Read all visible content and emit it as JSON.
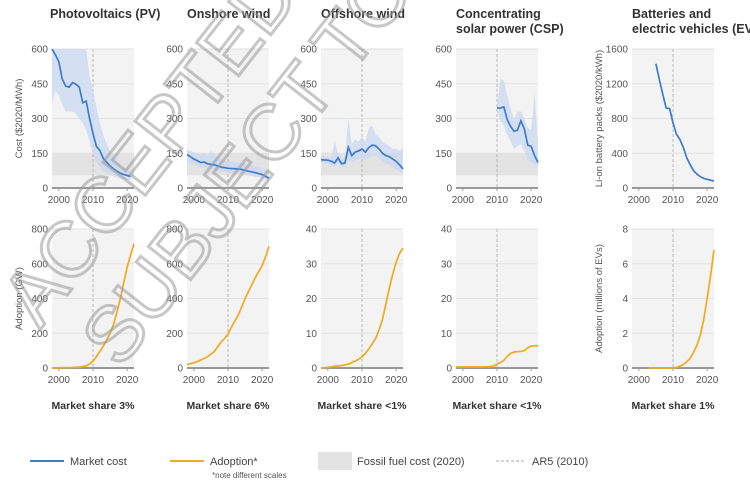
{
  "colors": {
    "cost": "#3d7cc9",
    "cost_band": "#cbd8f1",
    "adoption": "#f2a91f",
    "fossil": "#e3e3e3",
    "plot_bg": "#f3f3f3",
    "ar5": "#aaaaaa"
  },
  "legend": {
    "market_cost": "Market cost",
    "adoption": "Adoption*",
    "adoption_note": "*note different scales",
    "fossil": "Fossil fuel cost (2020)",
    "ar5": "AR5 (2010)"
  },
  "watermark": [
    "ACCEPTED",
    "SUBJECT TO"
  ],
  "chart_data": [
    {
      "type": "line",
      "title": [
        "Photovoltaics (PV)"
      ],
      "ylabel": "Cost ($2020/MWh)",
      "ylim": [
        0,
        600
      ],
      "yticks": [
        "0",
        "150",
        "300",
        "450",
        "600"
      ],
      "xticks": [
        "2000",
        "2010",
        "2020"
      ],
      "xlim": [
        1998,
        2022
      ],
      "fossil_band": [
        55,
        150
      ],
      "ar5_year": 2010,
      "x": [
        1998,
        1999,
        2000,
        2001,
        2002,
        2003,
        2004,
        2005,
        2006,
        2007,
        2008,
        2009,
        2010,
        2011,
        2012,
        2013,
        2014,
        2015,
        2016,
        2017,
        2018,
        2019,
        2020,
        2021
      ],
      "values": [
        610,
        575,
        545,
        470,
        440,
        435,
        455,
        448,
        435,
        368,
        375,
        300,
        235,
        180,
        162,
        128,
        112,
        95,
        83,
        73,
        64,
        58,
        54,
        50
      ],
      "band_upper": [
        600,
        600,
        600,
        600,
        600,
        600,
        600,
        600,
        600,
        600,
        600,
        480,
        420,
        350,
        280,
        230,
        190,
        160,
        140,
        120,
        100,
        90,
        80,
        75
      ],
      "band_lower": [
        360,
        420,
        400,
        360,
        330,
        330,
        330,
        320,
        300,
        280,
        250,
        200,
        150,
        110,
        90,
        70,
        65,
        60,
        50,
        45,
        40,
        38,
        35,
        33
      ]
    },
    {
      "type": "line",
      "title": [
        "Onshore wind"
      ],
      "ylim": [
        0,
        600
      ],
      "yticks": [
        "0",
        "150",
        "300",
        "450",
        "600"
      ],
      "xticks": [
        "2000",
        "2010",
        "2020"
      ],
      "xlim": [
        1998,
        2022
      ],
      "fossil_band": [
        55,
        150
      ],
      "ar5_year": 2010,
      "x": [
        1998,
        2000,
        2001,
        2002,
        2003,
        2004,
        2005,
        2006,
        2007,
        2008,
        2009,
        2010,
        2011,
        2012,
        2013,
        2014,
        2015,
        2016,
        2017,
        2018,
        2019,
        2020,
        2021,
        2022
      ],
      "values": [
        145,
        125,
        118,
        110,
        112,
        105,
        102,
        100,
        95,
        90,
        88,
        85,
        84,
        83,
        82,
        80,
        76,
        72,
        70,
        66,
        62,
        58,
        50,
        42
      ],
      "band_upper": [
        165,
        155,
        150,
        145,
        150,
        140,
        160,
        145,
        130,
        125,
        120,
        115,
        115,
        112,
        110,
        108,
        104,
        100,
        97,
        94,
        90,
        86,
        80,
        72
      ],
      "band_lower": [
        115,
        100,
        95,
        88,
        88,
        82,
        80,
        78,
        74,
        70,
        68,
        65,
        64,
        63,
        62,
        60,
        57,
        54,
        52,
        49,
        46,
        43,
        37,
        30
      ]
    },
    {
      "type": "line",
      "title": [
        "Offshore wind"
      ],
      "ylim": [
        0,
        600
      ],
      "yticks": [
        "0",
        "150",
        "300",
        "450",
        "600"
      ],
      "xticks": [
        "2000",
        "2010",
        "2020"
      ],
      "xlim": [
        1998,
        2022
      ],
      "fossil_band": [
        55,
        150
      ],
      "ar5_year": 2010,
      "x": [
        1998,
        2000,
        2001,
        2002,
        2003,
        2004,
        2005,
        2006,
        2007,
        2008,
        2009,
        2010,
        2011,
        2012,
        2013,
        2014,
        2015,
        2016,
        2017,
        2018,
        2019,
        2020,
        2021,
        2022
      ],
      "values": [
        122,
        120,
        116,
        108,
        130,
        105,
        108,
        175,
        140,
        155,
        160,
        168,
        155,
        175,
        185,
        182,
        168,
        150,
        140,
        135,
        125,
        115,
        100,
        82
      ],
      "band_upper": [
        140,
        135,
        130,
        200,
        150,
        130,
        130,
        300,
        190,
        210,
        200,
        220,
        200,
        260,
        270,
        230,
        220,
        200,
        190,
        180,
        170,
        170,
        160,
        175
      ],
      "band_lower": [
        105,
        105,
        100,
        92,
        110,
        90,
        92,
        120,
        110,
        120,
        125,
        130,
        120,
        130,
        140,
        140,
        130,
        115,
        105,
        100,
        90,
        80,
        70,
        65
      ]
    },
    {
      "type": "line",
      "title": [
        "Concentrating",
        "solar power (CSP)"
      ],
      "ylim": [
        0,
        600
      ],
      "yticks": [
        "0",
        "150",
        "300",
        "450",
        "600"
      ],
      "xticks": [
        "2000",
        "2010",
        "2020"
      ],
      "xlim": [
        1998,
        2022
      ],
      "fossil_band": [
        55,
        150
      ],
      "ar5_year": 2010,
      "x": [
        2010,
        2011,
        2012,
        2013,
        2014,
        2015,
        2016,
        2017,
        2018,
        2019,
        2020,
        2021,
        2022
      ],
      "values": [
        345,
        345,
        350,
        295,
        265,
        245,
        250,
        290,
        255,
        185,
        180,
        140,
        110
      ],
      "band_upper": [
        360,
        470,
        465,
        400,
        340,
        300,
        330,
        330,
        300,
        260,
        250,
        410,
        200
      ],
      "band_lower": [
        330,
        290,
        270,
        230,
        200,
        170,
        180,
        190,
        160,
        120,
        110,
        100,
        90
      ]
    },
    {
      "type": "line",
      "title": [
        "Batteries and",
        "electric vehicles (EVs)"
      ],
      "ylabel": "Li-on battery packs ($2020/kWh)",
      "ylim": [
        0,
        1600
      ],
      "yticks": [
        "0",
        "400",
        "800",
        "1200",
        "1600"
      ],
      "xticks": [
        "2000",
        "2010",
        "2020"
      ],
      "xlim": [
        1998,
        2022
      ],
      "ar5_year": 2010,
      "x": [
        2005,
        2006,
        2007,
        2008,
        2009,
        2010,
        2011,
        2012,
        2013,
        2014,
        2015,
        2016,
        2017,
        2018,
        2019,
        2020,
        2021,
        2022
      ],
      "values": [
        1430,
        1250,
        1080,
        920,
        915,
        750,
        620,
        560,
        470,
        350,
        270,
        200,
        160,
        130,
        110,
        100,
        90,
        80
      ]
    },
    {
      "type": "line",
      "ylabel": "Adoption (GW)",
      "ylim": [
        0,
        800
      ],
      "yticks": [
        "0",
        "200",
        "400",
        "600",
        "800"
      ],
      "xticks": [
        "2000",
        "2010",
        "2020"
      ],
      "xlim": [
        1998,
        2022
      ],
      "ar5_year": 2010,
      "market_share": "Market share 3%",
      "x": [
        1998,
        2000,
        2002,
        2004,
        2006,
        2008,
        2009,
        2010,
        2011,
        2012,
        2013,
        2014,
        2015,
        2016,
        2017,
        2018,
        2019,
        2020,
        2021,
        2022
      ],
      "values": [
        0,
        1,
        2,
        3,
        5,
        12,
        22,
        40,
        65,
        95,
        125,
        160,
        200,
        250,
        320,
        400,
        490,
        580,
        650,
        715
      ]
    },
    {
      "type": "line",
      "ylim": [
        0,
        800
      ],
      "yticks": [
        "0",
        "200",
        "400",
        "600",
        "800"
      ],
      "xticks": [
        "2000",
        "2010",
        "2020"
      ],
      "xlim": [
        1998,
        2022
      ],
      "ar5_year": 2010,
      "market_share": "Market share 6%",
      "x": [
        1998,
        2000,
        2002,
        2004,
        2006,
        2008,
        2009,
        2010,
        2011,
        2012,
        2013,
        2014,
        2015,
        2016,
        2017,
        2018,
        2019,
        2020,
        2021,
        2022
      ],
      "values": [
        20,
        30,
        45,
        65,
        95,
        150,
        170,
        195,
        235,
        270,
        305,
        350,
        400,
        440,
        480,
        520,
        555,
        590,
        640,
        700
      ]
    },
    {
      "type": "line",
      "ylim": [
        0,
        40
      ],
      "yticks": [
        "0",
        "10",
        "20",
        "30",
        "40"
      ],
      "xticks": [
        "2000",
        "2010",
        "2020"
      ],
      "xlim": [
        1998,
        2022
      ],
      "ar5_year": 2010,
      "market_share": "Market share <1%",
      "x": [
        1998,
        2000,
        2002,
        2004,
        2006,
        2008,
        2009,
        2010,
        2011,
        2012,
        2013,
        2014,
        2015,
        2016,
        2017,
        2018,
        2019,
        2020,
        2021,
        2022
      ],
      "values": [
        0,
        0.2,
        0.5,
        0.7,
        1.1,
        2,
        2.5,
        3.2,
        4.2,
        5.5,
        7,
        8.5,
        11,
        14,
        18.5,
        23,
        27,
        30.5,
        33,
        34.5
      ]
    },
    {
      "type": "line",
      "ylim": [
        0,
        40
      ],
      "yticks": [
        "0",
        "10",
        "20",
        "30",
        "40"
      ],
      "xticks": [
        "2000",
        "2010",
        "2020"
      ],
      "xlim": [
        1998,
        2022
      ],
      "ar5_year": 2010,
      "market_share": "Market share <1%",
      "x": [
        1998,
        2000,
        2002,
        2004,
        2006,
        2008,
        2009,
        2010,
        2011,
        2012,
        2013,
        2014,
        2015,
        2016,
        2017,
        2018,
        2019,
        2020,
        2021,
        2022
      ],
      "values": [
        0.3,
        0.3,
        0.3,
        0.3,
        0.3,
        0.4,
        0.6,
        1.1,
        1.6,
        2.2,
        3.4,
        4.2,
        4.6,
        4.7,
        4.8,
        5,
        5.8,
        6.3,
        6.4,
        6.4
      ]
    },
    {
      "type": "line",
      "ylabel": "Adoption (millions of EVs)",
      "ylim": [
        0,
        8
      ],
      "yticks": [
        "0",
        "2",
        "4",
        "6",
        "8"
      ],
      "xticks": [
        "2000",
        "2010",
        "2020"
      ],
      "xlim": [
        1998,
        2022
      ],
      "ar5_year": 2010,
      "market_share": "Market share 1%",
      "x": [
        2003,
        2005,
        2007,
        2009,
        2010,
        2011,
        2012,
        2013,
        2014,
        2015,
        2016,
        2017,
        2018,
        2019,
        2020,
        2021,
        2022
      ],
      "values": [
        0,
        0,
        0,
        0,
        0,
        0.03,
        0.1,
        0.2,
        0.35,
        0.55,
        0.9,
        1.3,
        1.9,
        2.8,
        4,
        5.3,
        6.8
      ]
    }
  ]
}
